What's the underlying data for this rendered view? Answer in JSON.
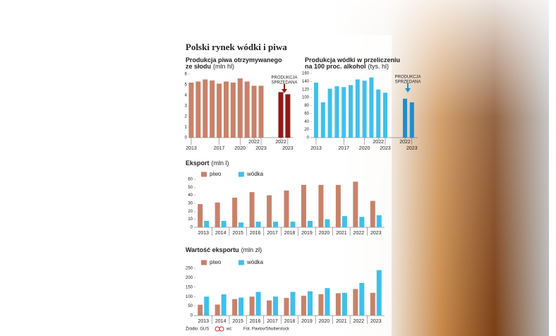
{
  "title": "Polski rynek wódki i piwa",
  "chart_data": [
    {
      "type": "grouped-bars",
      "title_lines": [
        "Produkcja piwa otrzymywanego",
        "ze słodu"
      ],
      "unit": "(mln hl)",
      "ylim": [
        0,
        6
      ],
      "yticks": [
        0,
        1,
        2,
        3,
        4,
        5,
        6
      ],
      "grid": false,
      "groups": [
        {
          "categories": [
            "2013",
            null,
            null,
            null,
            "2017",
            null,
            null,
            "2020",
            null,
            "2022",
            "2023"
          ],
          "values": [
            5.2,
            5.3,
            5.5,
            5.4,
            5.1,
            5.3,
            5.2,
            5.6,
            5.3,
            4.9,
            4.9
          ],
          "color": "#c8826a"
        },
        {
          "categories": [
            "2022",
            "2023"
          ],
          "values": [
            4.3,
            4.1
          ],
          "color": "#8e1b17"
        }
      ],
      "annotation": [
        "PRODUKCJA",
        "SPRZEDANA"
      ]
    },
    {
      "type": "grouped-bars",
      "title_lines": [
        "Produkcja wódki w przeliczeniu",
        "na 100 proc. alkohol"
      ],
      "unit": "(tys. hl)",
      "ylim": [
        0,
        160
      ],
      "yticks": [
        0,
        20,
        40,
        60,
        80,
        100,
        120,
        140,
        160
      ],
      "grid": false,
      "groups": [
        {
          "categories": [
            "2013",
            null,
            null,
            null,
            "2017",
            null,
            null,
            "2020",
            null,
            "2022",
            "2023"
          ],
          "values": [
            137,
            88,
            122,
            128,
            126,
            131,
            145,
            142,
            150,
            120,
            112
          ],
          "color": "#3fc0ea"
        },
        {
          "categories": [
            "2022",
            "2023"
          ],
          "values": [
            97,
            88
          ],
          "color": "#1b8fd2"
        }
      ],
      "annotation": [
        "PRODUKCJA",
        "SPRZEDANA"
      ]
    },
    {
      "type": "bar",
      "title_lines": [
        "Eksport"
      ],
      "unit": "(mln l)",
      "ylim": [
        0,
        60
      ],
      "yticks": [
        0,
        10,
        20,
        30,
        40,
        50,
        60
      ],
      "grid": false,
      "categories": [
        "2013",
        "2014",
        "2015",
        "2016",
        "2017",
        "2018",
        "2019",
        "2020",
        "2021",
        "2022",
        "2023"
      ],
      "series": [
        {
          "name": "piwo",
          "color": "#c8826a",
          "values": [
            29,
            31,
            37,
            44,
            40,
            46,
            53,
            53,
            53,
            57,
            33
          ]
        },
        {
          "name": "wódka",
          "color": "#3fc0ea",
          "values": [
            8,
            8,
            6,
            7,
            7,
            7,
            8,
            10,
            14,
            13,
            15
          ]
        }
      ]
    },
    {
      "type": "bar",
      "title_lines": [
        "Wartość eksportu"
      ],
      "unit": "(mln zł)",
      "ylim": [
        0,
        250
      ],
      "yticks": [
        0,
        50,
        100,
        150,
        200,
        250
      ],
      "grid": false,
      "categories": [
        "2013",
        "2014",
        "2015",
        "2016",
        "2017",
        "2018",
        "2019",
        "2020",
        "2021",
        "2022",
        "2023"
      ],
      "series": [
        {
          "name": "piwo",
          "color": "#c8826a",
          "values": [
            57,
            58,
            87,
            100,
            80,
            93,
            105,
            113,
            118,
            140,
            120
          ]
        },
        {
          "name": "wódka",
          "color": "#3fc0ea",
          "values": [
            100,
            112,
            95,
            125,
            100,
            125,
            128,
            145,
            120,
            172,
            240
          ]
        }
      ]
    }
  ],
  "footer": {
    "source": "Źródło: GUS",
    "author": "wc",
    "photo": "Fot. Pavlov/Shutterstock"
  }
}
